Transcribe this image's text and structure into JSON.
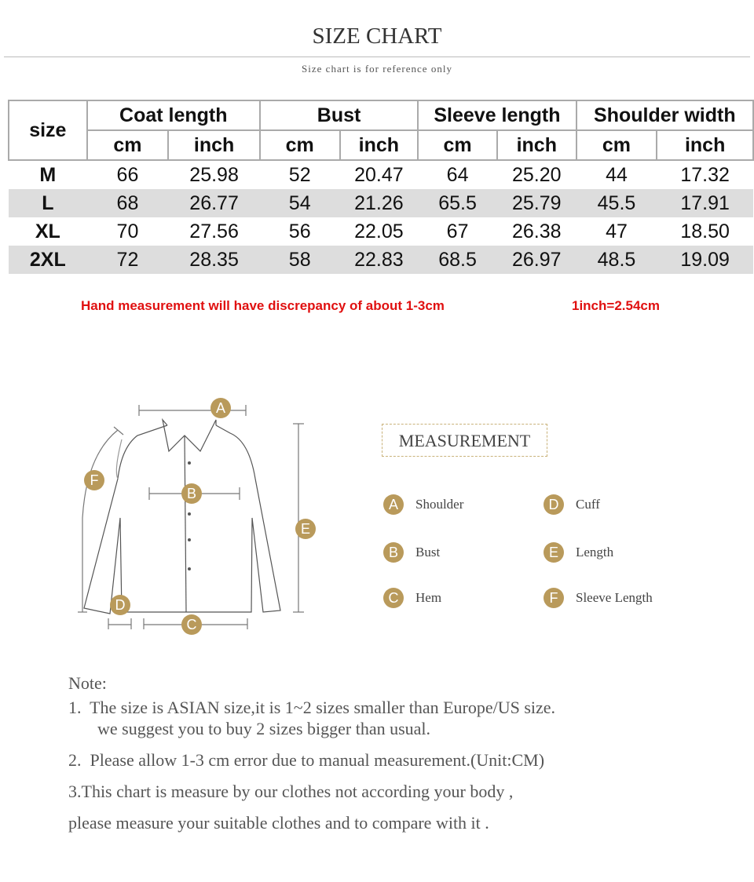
{
  "header": {
    "title": "SIZE CHART",
    "subtitle": "Size chart is for reference only"
  },
  "table": {
    "corner": "size",
    "groups": [
      "Coat length",
      "Bust",
      "Sleeve length",
      "Shoulder width"
    ],
    "units": [
      "cm",
      "inch",
      "cm",
      "inch",
      "cm",
      "inch",
      "cm",
      "inch"
    ],
    "rows": [
      [
        "M",
        "66",
        "25.98",
        "52",
        "20.47",
        "64",
        "25.20",
        "44",
        "17.32"
      ],
      [
        "L",
        "68",
        "26.77",
        "54",
        "21.26",
        "65.5",
        "25.79",
        "45.5",
        "17.91"
      ],
      [
        "XL",
        "70",
        "27.56",
        "56",
        "22.05",
        "67",
        "26.38",
        "47",
        "18.50"
      ],
      [
        "2XL",
        "72",
        "28.35",
        "58",
        "22.83",
        "68.5",
        "26.97",
        "48.5",
        "19.09"
      ]
    ]
  },
  "warnings": [
    "Hand measurement will have discrepancy of about 1-3cm",
    "1inch=2.54cm"
  ],
  "measurement": {
    "title": "MEASUREMENT",
    "items": [
      {
        "letter": "A",
        "label": "Shoulder"
      },
      {
        "letter": "B",
        "label": "Bust"
      },
      {
        "letter": "C",
        "label": "Hem"
      },
      {
        "letter": "D",
        "label": "Cuff"
      },
      {
        "letter": "E",
        "label": "Length"
      },
      {
        "letter": "F",
        "label": "Sleeve Length"
      }
    ]
  },
  "notes": {
    "heading": "Note:",
    "lines": [
      "1.  The size is ASIAN size,it is 1~2 sizes smaller than Europe/US size.",
      "we suggest you to buy 2 sizes bigger than usual.",
      "2.  Please allow 1-3 cm error due to manual measurement.(Unit:CM)",
      "3.This chart is measure by our clothes not according your body ,",
      "please measure your suitable clothes and to compare with it ."
    ]
  }
}
